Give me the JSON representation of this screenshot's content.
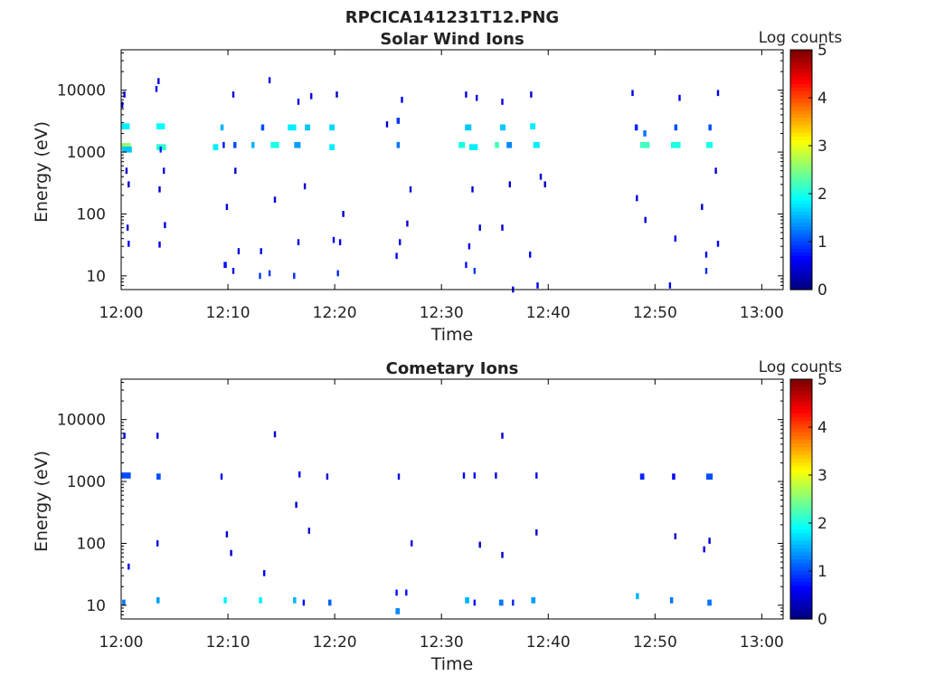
{
  "figure": {
    "title": "RPCICA141231T12.PNG"
  },
  "colors": {
    "frame": "#000000",
    "background": "#ffffff"
  },
  "chart_data": [
    {
      "type": "heatmap",
      "title": "Solar Wind Ions",
      "xlabel": "Time",
      "ylabel": "Energy (eV)",
      "x_tick_labels": [
        "12:00",
        "12:10",
        "12:20",
        "12:30",
        "12:40",
        "12:50",
        "13:00"
      ],
      "xlim_minutes": [
        0,
        62
      ],
      "y_tick_labels": [
        "10",
        "100",
        "1000",
        "10000"
      ],
      "y_scale": "log",
      "ylim": [
        6,
        45000
      ],
      "colorbar": {
        "label": "Log counts",
        "ticks": [
          "0",
          "1",
          "2",
          "3",
          "4",
          "5"
        ],
        "range": [
          0,
          5
        ],
        "colormap": "jet"
      },
      "columns": [
        {
          "t": 0.0,
          "energy": 2600,
          "dt": 0.8,
          "value": 1.8
        },
        {
          "t": 0.0,
          "energy": 1250,
          "dt": 0.9,
          "value": 2.6
        },
        {
          "t": 0.1,
          "energy": 1100,
          "dt": 0.9,
          "value": 1.6
        },
        {
          "t": 0.2,
          "energy": 8500,
          "dt": 0.2,
          "value": 0.5
        },
        {
          "t": 0.0,
          "energy": 5800,
          "dt": 0.2,
          "value": 0.6
        },
        {
          "t": 0.4,
          "energy": 500,
          "dt": 0.2,
          "value": 0.4
        },
        {
          "t": 0.6,
          "energy": 300,
          "dt": 0.2,
          "value": 0.4
        },
        {
          "t": 0.5,
          "energy": 60,
          "dt": 0.2,
          "value": 0.4
        },
        {
          "t": 0.6,
          "energy": 33,
          "dt": 0.2,
          "value": 0.6
        },
        {
          "t": 3.3,
          "energy": 2600,
          "dt": 0.8,
          "value": 1.9
        },
        {
          "t": 3.3,
          "energy": 1200,
          "dt": 0.9,
          "value": 2.1
        },
        {
          "t": 3.4,
          "energy": 14000,
          "dt": 0.2,
          "value": 0.5
        },
        {
          "t": 3.2,
          "energy": 10500,
          "dt": 0.2,
          "value": 0.6
        },
        {
          "t": 3.6,
          "energy": 1100,
          "dt": 0.2,
          "value": 0.8
        },
        {
          "t": 3.9,
          "energy": 500,
          "dt": 0.2,
          "value": 0.5
        },
        {
          "t": 3.5,
          "energy": 250,
          "dt": 0.2,
          "value": 0.4
        },
        {
          "t": 4.0,
          "energy": 66,
          "dt": 0.2,
          "value": 0.5
        },
        {
          "t": 3.5,
          "energy": 32,
          "dt": 0.2,
          "value": 0.5
        },
        {
          "t": 8.6,
          "energy": 1200,
          "dt": 0.5,
          "value": 1.8
        },
        {
          "t": 9.3,
          "energy": 2500,
          "dt": 0.3,
          "value": 1.5
        },
        {
          "t": 9.5,
          "energy": 1300,
          "dt": 0.2,
          "value": 0.7
        },
        {
          "t": 9.8,
          "energy": 130,
          "dt": 0.2,
          "value": 0.5
        },
        {
          "t": 9.6,
          "energy": 15,
          "dt": 0.3,
          "value": 0.7
        },
        {
          "t": 10.5,
          "energy": 1300,
          "dt": 0.3,
          "value": 1.0
        },
        {
          "t": 10.4,
          "energy": 8500,
          "dt": 0.2,
          "value": 0.4
        },
        {
          "t": 10.6,
          "energy": 500,
          "dt": 0.2,
          "value": 0.4
        },
        {
          "t": 10.9,
          "energy": 25,
          "dt": 0.2,
          "value": 0.5
        },
        {
          "t": 10.4,
          "energy": 12,
          "dt": 0.2,
          "value": 0.7
        },
        {
          "t": 12.2,
          "energy": 1300,
          "dt": 0.3,
          "value": 1.5
        },
        {
          "t": 13.1,
          "energy": 2500,
          "dt": 0.3,
          "value": 1.0
        },
        {
          "t": 14.0,
          "energy": 1300,
          "dt": 0.8,
          "value": 2.0
        },
        {
          "t": 13.8,
          "energy": 14500,
          "dt": 0.2,
          "value": 0.5
        },
        {
          "t": 13.0,
          "energy": 25,
          "dt": 0.2,
          "value": 0.6
        },
        {
          "t": 12.9,
          "energy": 10,
          "dt": 0.2,
          "value": 0.9
        },
        {
          "t": 13.8,
          "energy": 11,
          "dt": 0.2,
          "value": 0.9
        },
        {
          "t": 14.3,
          "energy": 170,
          "dt": 0.2,
          "value": 0.4
        },
        {
          "t": 15.6,
          "energy": 2500,
          "dt": 0.8,
          "value": 1.8
        },
        {
          "t": 16.2,
          "energy": 1300,
          "dt": 0.6,
          "value": 1.4
        },
        {
          "t": 17.2,
          "energy": 2500,
          "dt": 0.5,
          "value": 1.6
        },
        {
          "t": 16.5,
          "energy": 6500,
          "dt": 0.2,
          "value": 0.5
        },
        {
          "t": 16.1,
          "energy": 10,
          "dt": 0.2,
          "value": 0.8
        },
        {
          "t": 16.5,
          "energy": 35,
          "dt": 0.2,
          "value": 0.5
        },
        {
          "t": 17.1,
          "energy": 280,
          "dt": 0.2,
          "value": 0.4
        },
        {
          "t": 17.7,
          "energy": 8000,
          "dt": 0.2,
          "value": 0.5
        },
        {
          "t": 19.5,
          "energy": 2500,
          "dt": 0.5,
          "value": 1.7
        },
        {
          "t": 19.5,
          "energy": 1200,
          "dt": 0.5,
          "value": 1.8
        },
        {
          "t": 20.1,
          "energy": 8500,
          "dt": 0.2,
          "value": 0.4
        },
        {
          "t": 19.8,
          "energy": 38,
          "dt": 0.2,
          "value": 0.5
        },
        {
          "t": 20.4,
          "energy": 35,
          "dt": 0.2,
          "value": 0.6
        },
        {
          "t": 20.2,
          "energy": 11,
          "dt": 0.2,
          "value": 0.8
        },
        {
          "t": 20.7,
          "energy": 100,
          "dt": 0.2,
          "value": 0.4
        },
        {
          "t": 24.8,
          "energy": 2800,
          "dt": 0.2,
          "value": 0.4
        },
        {
          "t": 25.8,
          "energy": 1300,
          "dt": 0.3,
          "value": 1.2
        },
        {
          "t": 25.8,
          "energy": 3200,
          "dt": 0.3,
          "value": 0.9
        },
        {
          "t": 26.2,
          "energy": 7000,
          "dt": 0.2,
          "value": 0.5
        },
        {
          "t": 26.0,
          "energy": 35,
          "dt": 0.2,
          "value": 0.5
        },
        {
          "t": 25.7,
          "energy": 21,
          "dt": 0.2,
          "value": 0.6
        },
        {
          "t": 26.7,
          "energy": 70,
          "dt": 0.2,
          "value": 0.4
        },
        {
          "t": 27.0,
          "energy": 250,
          "dt": 0.2,
          "value": 0.4
        },
        {
          "t": 31.6,
          "energy": 1300,
          "dt": 0.6,
          "value": 2.0
        },
        {
          "t": 32.2,
          "energy": 2500,
          "dt": 0.6,
          "value": 1.6
        },
        {
          "t": 32.2,
          "energy": 8500,
          "dt": 0.2,
          "value": 0.5
        },
        {
          "t": 32.6,
          "energy": 1200,
          "dt": 0.8,
          "value": 1.8
        },
        {
          "t": 33.2,
          "energy": 7500,
          "dt": 0.2,
          "value": 0.5
        },
        {
          "t": 32.5,
          "energy": 30,
          "dt": 0.2,
          "value": 0.5
        },
        {
          "t": 32.2,
          "energy": 15,
          "dt": 0.2,
          "value": 0.7
        },
        {
          "t": 33.0,
          "energy": 12,
          "dt": 0.2,
          "value": 0.9
        },
        {
          "t": 32.8,
          "energy": 250,
          "dt": 0.2,
          "value": 0.4
        },
        {
          "t": 33.5,
          "energy": 60,
          "dt": 0.2,
          "value": 0.4
        },
        {
          "t": 35.0,
          "energy": 1300,
          "dt": 0.4,
          "value": 2.2
        },
        {
          "t": 35.5,
          "energy": 2500,
          "dt": 0.5,
          "value": 1.6
        },
        {
          "t": 35.6,
          "energy": 6500,
          "dt": 0.2,
          "value": 0.5
        },
        {
          "t": 36.1,
          "energy": 1300,
          "dt": 0.5,
          "value": 1.3
        },
        {
          "t": 35.6,
          "energy": 60,
          "dt": 0.2,
          "value": 0.4
        },
        {
          "t": 36.3,
          "energy": 300,
          "dt": 0.2,
          "value": 0.4
        },
        {
          "t": 36.6,
          "energy": 6,
          "dt": 0.2,
          "value": 0.6
        },
        {
          "t": 38.3,
          "energy": 2600,
          "dt": 0.5,
          "value": 1.8
        },
        {
          "t": 38.6,
          "energy": 1300,
          "dt": 0.6,
          "value": 1.8
        },
        {
          "t": 38.3,
          "energy": 8500,
          "dt": 0.2,
          "value": 0.4
        },
        {
          "t": 38.2,
          "energy": 22,
          "dt": 0.2,
          "value": 0.6
        },
        {
          "t": 38.9,
          "energy": 7,
          "dt": 0.2,
          "value": 0.6
        },
        {
          "t": 39.2,
          "energy": 400,
          "dt": 0.2,
          "value": 0.4
        },
        {
          "t": 39.6,
          "energy": 300,
          "dt": 0.2,
          "value": 0.4
        },
        {
          "t": 47.8,
          "energy": 9000,
          "dt": 0.2,
          "value": 0.5
        },
        {
          "t": 48.1,
          "energy": 2500,
          "dt": 0.3,
          "value": 0.8
        },
        {
          "t": 48.6,
          "energy": 1300,
          "dt": 0.9,
          "value": 2.2
        },
        {
          "t": 48.9,
          "energy": 2000,
          "dt": 0.3,
          "value": 1.2
        },
        {
          "t": 48.2,
          "energy": 180,
          "dt": 0.2,
          "value": 0.4
        },
        {
          "t": 49.0,
          "energy": 80,
          "dt": 0.2,
          "value": 0.4
        },
        {
          "t": 51.5,
          "energy": 1300,
          "dt": 0.9,
          "value": 2.0
        },
        {
          "t": 51.8,
          "energy": 2500,
          "dt": 0.3,
          "value": 1.0
        },
        {
          "t": 52.2,
          "energy": 7500,
          "dt": 0.2,
          "value": 0.5
        },
        {
          "t": 51.8,
          "energy": 40,
          "dt": 0.2,
          "value": 0.5
        },
        {
          "t": 51.3,
          "energy": 7,
          "dt": 0.2,
          "value": 0.6
        },
        {
          "t": 54.8,
          "energy": 1300,
          "dt": 0.6,
          "value": 2.0
        },
        {
          "t": 55.0,
          "energy": 2500,
          "dt": 0.3,
          "value": 1.0
        },
        {
          "t": 55.8,
          "energy": 9000,
          "dt": 0.2,
          "value": 0.5
        },
        {
          "t": 55.6,
          "energy": 500,
          "dt": 0.2,
          "value": 0.4
        },
        {
          "t": 55.8,
          "energy": 33,
          "dt": 0.2,
          "value": 0.6
        },
        {
          "t": 54.7,
          "energy": 12,
          "dt": 0.2,
          "value": 0.8
        },
        {
          "t": 54.7,
          "energy": 22,
          "dt": 0.2,
          "value": 0.6
        },
        {
          "t": 54.3,
          "energy": 130,
          "dt": 0.2,
          "value": 0.4
        }
      ]
    },
    {
      "type": "heatmap",
      "title": "Cometary Ions",
      "xlabel": "Time",
      "ylabel": "Energy (eV)",
      "x_tick_labels": [
        "12:00",
        "12:10",
        "12:20",
        "12:30",
        "12:40",
        "12:50",
        "13:00"
      ],
      "xlim_minutes": [
        0,
        62
      ],
      "y_tick_labels": [
        "10",
        "100",
        "1000",
        "10000"
      ],
      "y_scale": "log",
      "ylim": [
        6,
        45000
      ],
      "colorbar": {
        "label": "Log counts",
        "ticks": [
          "0",
          "1",
          "2",
          "3",
          "4",
          "5"
        ],
        "range": [
          0,
          5
        ],
        "colormap": "jet"
      },
      "columns": [
        {
          "t": 0.0,
          "energy": 1250,
          "dt": 0.9,
          "value": 1.0
        },
        {
          "t": 0.2,
          "energy": 5500,
          "dt": 0.2,
          "value": 0.5
        },
        {
          "t": 0.1,
          "energy": 11,
          "dt": 0.3,
          "value": 1.2
        },
        {
          "t": 0.6,
          "energy": 42,
          "dt": 0.2,
          "value": 0.5
        },
        {
          "t": 3.3,
          "energy": 1200,
          "dt": 0.4,
          "value": 1.0
        },
        {
          "t": 3.3,
          "energy": 5500,
          "dt": 0.2,
          "value": 0.5
        },
        {
          "t": 3.3,
          "energy": 100,
          "dt": 0.2,
          "value": 0.5
        },
        {
          "t": 3.3,
          "energy": 12,
          "dt": 0.3,
          "value": 1.4
        },
        {
          "t": 9.3,
          "energy": 1200,
          "dt": 0.2,
          "value": 0.6
        },
        {
          "t": 9.6,
          "energy": 12,
          "dt": 0.3,
          "value": 1.8
        },
        {
          "t": 9.8,
          "energy": 140,
          "dt": 0.2,
          "value": 0.4
        },
        {
          "t": 10.2,
          "energy": 70,
          "dt": 0.2,
          "value": 0.4
        },
        {
          "t": 12.9,
          "energy": 12,
          "dt": 0.3,
          "value": 1.8
        },
        {
          "t": 13.3,
          "energy": 33,
          "dt": 0.2,
          "value": 0.6
        },
        {
          "t": 14.3,
          "energy": 5800,
          "dt": 0.2,
          "value": 0.4
        },
        {
          "t": 16.1,
          "energy": 12,
          "dt": 0.3,
          "value": 1.5
        },
        {
          "t": 16.3,
          "energy": 420,
          "dt": 0.2,
          "value": 0.4
        },
        {
          "t": 16.6,
          "energy": 1300,
          "dt": 0.2,
          "value": 0.5
        },
        {
          "t": 17.0,
          "energy": 11,
          "dt": 0.2,
          "value": 0.7
        },
        {
          "t": 17.5,
          "energy": 160,
          "dt": 0.2,
          "value": 0.4
        },
        {
          "t": 19.4,
          "energy": 11,
          "dt": 0.3,
          "value": 1.1
        },
        {
          "t": 19.2,
          "energy": 1200,
          "dt": 0.2,
          "value": 0.5
        },
        {
          "t": 25.7,
          "energy": 8,
          "dt": 0.4,
          "value": 1.3
        },
        {
          "t": 25.7,
          "energy": 16,
          "dt": 0.2,
          "value": 0.7
        },
        {
          "t": 26.6,
          "energy": 16,
          "dt": 0.2,
          "value": 0.7
        },
        {
          "t": 25.9,
          "energy": 1200,
          "dt": 0.2,
          "value": 0.5
        },
        {
          "t": 27.1,
          "energy": 100,
          "dt": 0.2,
          "value": 0.5
        },
        {
          "t": 32.2,
          "energy": 12,
          "dt": 0.4,
          "value": 1.5
        },
        {
          "t": 32.0,
          "energy": 1250,
          "dt": 0.2,
          "value": 0.6
        },
        {
          "t": 33.0,
          "energy": 1250,
          "dt": 0.2,
          "value": 0.6
        },
        {
          "t": 33.0,
          "energy": 11,
          "dt": 0.2,
          "value": 0.7
        },
        {
          "t": 33.5,
          "energy": 95,
          "dt": 0.2,
          "value": 0.4
        },
        {
          "t": 35.0,
          "energy": 1250,
          "dt": 0.2,
          "value": 0.5
        },
        {
          "t": 35.4,
          "energy": 11,
          "dt": 0.4,
          "value": 1.2
        },
        {
          "t": 35.6,
          "energy": 5500,
          "dt": 0.2,
          "value": 0.4
        },
        {
          "t": 35.6,
          "energy": 65,
          "dt": 0.2,
          "value": 0.4
        },
        {
          "t": 36.6,
          "energy": 11,
          "dt": 0.2,
          "value": 0.8
        },
        {
          "t": 38.4,
          "energy": 12,
          "dt": 0.4,
          "value": 1.4
        },
        {
          "t": 38.8,
          "energy": 1250,
          "dt": 0.2,
          "value": 0.6
        },
        {
          "t": 38.8,
          "energy": 150,
          "dt": 0.2,
          "value": 0.4
        },
        {
          "t": 48.2,
          "energy": 14,
          "dt": 0.3,
          "value": 1.5
        },
        {
          "t": 48.6,
          "energy": 1200,
          "dt": 0.4,
          "value": 0.8
        },
        {
          "t": 51.4,
          "energy": 12,
          "dt": 0.3,
          "value": 1.2
        },
        {
          "t": 51.6,
          "energy": 1200,
          "dt": 0.3,
          "value": 0.6
        },
        {
          "t": 51.8,
          "energy": 130,
          "dt": 0.2,
          "value": 0.4
        },
        {
          "t": 54.8,
          "energy": 1200,
          "dt": 0.6,
          "value": 1.0
        },
        {
          "t": 54.9,
          "energy": 11,
          "dt": 0.4,
          "value": 1.2
        },
        {
          "t": 54.5,
          "energy": 80,
          "dt": 0.2,
          "value": 0.4
        },
        {
          "t": 55.0,
          "energy": 110,
          "dt": 0.2,
          "value": 0.4
        }
      ]
    }
  ]
}
